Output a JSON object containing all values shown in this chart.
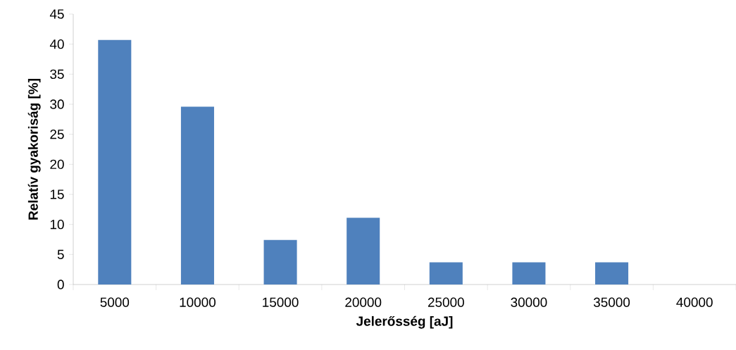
{
  "chart_data": {
    "type": "bar",
    "xlabel": "Jelerősség [aJ]",
    "ylabel": "Relatív gyakoriság [%]",
    "categories": [
      "5000",
      "10000",
      "15000",
      "20000",
      "25000",
      "30000",
      "35000",
      "40000"
    ],
    "values": [
      40.7,
      29.6,
      7.4,
      11.1,
      3.7,
      3.7,
      3.7,
      0
    ],
    "color": "#4f81bd",
    "ylim": [
      0,
      45
    ],
    "yticks": [
      0,
      5,
      10,
      15,
      20,
      25,
      30,
      35,
      40,
      45
    ]
  }
}
